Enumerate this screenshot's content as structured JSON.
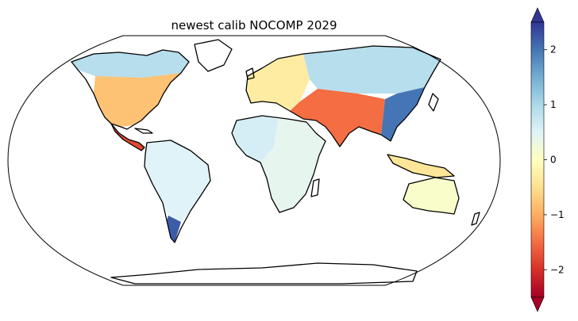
{
  "chart_data": {
    "type": "heatmap",
    "title": "newest calib NOCOMP 2029",
    "projection": "Robinson",
    "colormap": "RdYlBu",
    "colorbar": {
      "ticks": [
        2,
        1,
        0,
        -1,
        -2
      ],
      "tick_labels": [
        "2",
        "1",
        "0",
        "−1",
        "−2"
      ],
      "vmin": -2.5,
      "vmax": 2.5,
      "extend": "both",
      "color_stops": [
        "#a50026",
        "#d73027",
        "#f46d43",
        "#fdae61",
        "#fee090",
        "#ffffbf",
        "#e0f3f8",
        "#abd9e9",
        "#74add1",
        "#4575b4",
        "#313695"
      ]
    },
    "regions": [
      {
        "name": "Alaska/Canada",
        "value": 0.9
      },
      {
        "name": "USA",
        "value": -0.8
      },
      {
        "name": "Central America",
        "value": -1.8
      },
      {
        "name": "South America",
        "value": 0.5
      },
      {
        "name": "Patagonia",
        "value": 2.2
      },
      {
        "name": "Europe",
        "value": -0.3
      },
      {
        "name": "Russia",
        "value": 0.9
      },
      {
        "name": "West Africa",
        "value": 0.6
      },
      {
        "name": "Central/East Africa",
        "value": 0.4
      },
      {
        "name": "South Asia",
        "value": -1.5
      },
      {
        "name": "East China",
        "value": 2.0
      },
      {
        "name": "Southeast Asia",
        "value": -0.4
      },
      {
        "name": "Australia",
        "value": 0.1
      }
    ]
  }
}
